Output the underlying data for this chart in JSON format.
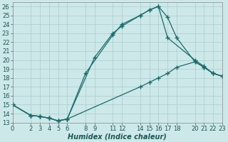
{
  "title": "",
  "xlabel": "Humidex (Indice chaleur)",
  "bg_color": "#cde8e8",
  "line_color": "#1a6b6b",
  "marker": "+",
  "xlim": [
    0,
    23
  ],
  "ylim": [
    13,
    26.5
  ],
  "xticks": [
    0,
    2,
    3,
    4,
    5,
    6,
    8,
    9,
    11,
    12,
    14,
    15,
    16,
    17,
    18,
    20,
    21,
    22,
    23
  ],
  "yticks": [
    13,
    14,
    15,
    16,
    17,
    18,
    19,
    20,
    21,
    22,
    23,
    24,
    25,
    26
  ],
  "line1_x": [
    0,
    2,
    3,
    4,
    5,
    6,
    9,
    11,
    12,
    14,
    15,
    16,
    17,
    20,
    21,
    22,
    23
  ],
  "line1_y": [
    15,
    13.8,
    13.7,
    13.5,
    13.2,
    13.4,
    20.3,
    23.0,
    23.8,
    25.0,
    25.6,
    26.0,
    22.5,
    20.0,
    19.3,
    18.5,
    18.2
  ],
  "line2_x": [
    0,
    2,
    3,
    4,
    5,
    6,
    8,
    11,
    12,
    14,
    15,
    16,
    17,
    18,
    20,
    21,
    22,
    23
  ],
  "line2_y": [
    15,
    13.8,
    13.7,
    13.5,
    13.2,
    13.4,
    18.5,
    22.8,
    24.0,
    25.0,
    25.6,
    26.0,
    24.8,
    22.5,
    19.8,
    19.2,
    18.5,
    18.2
  ],
  "line3_x": [
    0,
    2,
    3,
    4,
    5,
    6,
    14,
    15,
    16,
    17,
    18,
    20,
    21,
    22,
    23
  ],
  "line3_y": [
    15,
    13.8,
    13.7,
    13.5,
    13.2,
    13.4,
    17.0,
    17.5,
    18.0,
    18.5,
    19.2,
    19.8,
    19.2,
    18.5,
    18.2
  ],
  "grid_color": "#aacccc",
  "tick_fontsize": 6,
  "label_fontsize": 7
}
